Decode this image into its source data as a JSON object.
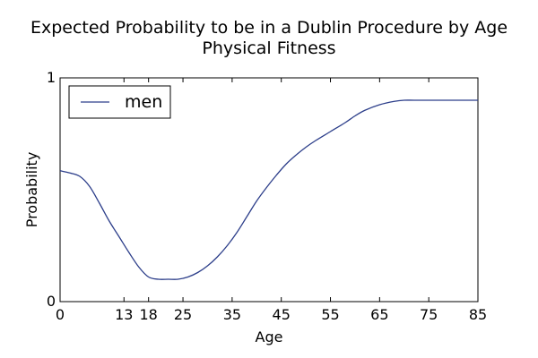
{
  "chart_data": {
    "type": "line",
    "title": "Expected Probability to be in a Dublin Procedure by Age",
    "subtitle": "Physical Fitness",
    "xlabel": "Age",
    "ylabel": "Probability",
    "xlim": [
      0,
      85
    ],
    "ylim": [
      0,
      1
    ],
    "x_ticks": [
      0,
      13,
      18,
      25,
      35,
      45,
      55,
      65,
      75,
      85
    ],
    "y_ticks": [
      0,
      1
    ],
    "grid": false,
    "legend": {
      "position": "top-left"
    },
    "series": [
      {
        "name": "men",
        "color": "#2c3e8a",
        "x": [
          0,
          2,
          4,
          6,
          8,
          10,
          12,
          14,
          16,
          18,
          20,
          22,
          24,
          26,
          28,
          30,
          32,
          34,
          36,
          38,
          40,
          42,
          44,
          46,
          48,
          50,
          52,
          55,
          58,
          60,
          62,
          65,
          68,
          70,
          72,
          75,
          80,
          85
        ],
        "y": [
          0.585,
          0.575,
          0.56,
          0.515,
          0.44,
          0.36,
          0.29,
          0.22,
          0.155,
          0.11,
          0.1,
          0.1,
          0.1,
          0.11,
          0.13,
          0.16,
          0.2,
          0.25,
          0.31,
          0.38,
          0.45,
          0.51,
          0.565,
          0.615,
          0.655,
          0.69,
          0.72,
          0.76,
          0.8,
          0.83,
          0.855,
          0.88,
          0.895,
          0.9,
          0.9,
          0.9,
          0.9,
          0.9
        ]
      }
    ]
  }
}
